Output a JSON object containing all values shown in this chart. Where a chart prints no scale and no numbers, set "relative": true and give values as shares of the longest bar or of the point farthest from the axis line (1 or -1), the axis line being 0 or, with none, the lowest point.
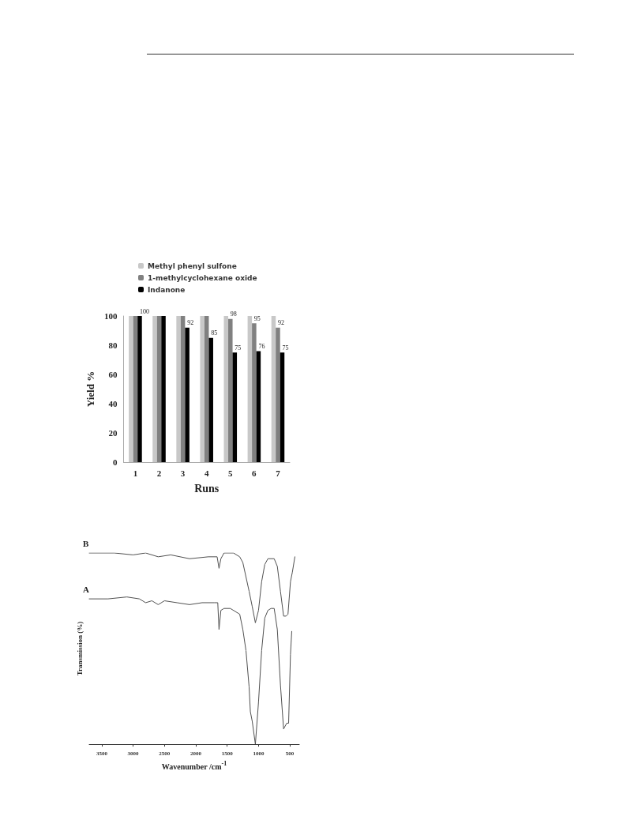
{
  "chart_data": [
    {
      "type": "bar",
      "xlabel": "Runs",
      "ylabel": "Yield %",
      "categories": [
        "1",
        "2",
        "3",
        "4",
        "5",
        "6",
        "7"
      ],
      "ylim": [
        0,
        100
      ],
      "yticks": [
        0,
        20,
        40,
        60,
        80,
        100
      ],
      "grid": false,
      "legend": "top",
      "series": [
        {
          "name": "Methyl phenyl sulfone",
          "color": "#c8c8c8",
          "values": [
            100,
            100,
            100,
            100,
            100,
            100,
            100
          ]
        },
        {
          "name": "1-methylcyclohexane oxide",
          "color": "#808080",
          "values": [
            100,
            100,
            100,
            100,
            98,
            95,
            92
          ],
          "value_labels": [
            null,
            null,
            null,
            null,
            "98",
            "95",
            "92"
          ]
        },
        {
          "name": "Indanone",
          "color": "#000000",
          "values": [
            100,
            100,
            92,
            85,
            75,
            76,
            75
          ],
          "value_labels": [
            "100",
            null,
            "92",
            "85",
            "75",
            "76",
            "75"
          ]
        }
      ]
    },
    {
      "type": "line",
      "xlabel": "Wavenumber /cm$^{-1}$",
      "ylabel": "Transmission (%)",
      "relative": true,
      "xlim": [
        3700,
        350
      ],
      "xticks": [
        3500,
        3000,
        2500,
        2000,
        1500,
        1000,
        500
      ],
      "grid": false,
      "legend": false,
      "marker": "none",
      "line_style": "solid",
      "series": [
        {
          "name": "B",
          "color": "#505050",
          "x": [
            3700,
            3300,
            3000,
            2800,
            2600,
            2400,
            2100,
            1800,
            1660,
            1630,
            1600,
            1550,
            1400,
            1300,
            1250,
            1150,
            1100,
            1050,
            1000,
            950,
            900,
            850,
            750,
            700,
            650,
            600,
            560,
            530,
            490,
            460,
            420
          ],
          "values": [
            1.0,
            1.0,
            0.99,
            1.0,
            0.98,
            0.99,
            0.97,
            0.98,
            0.98,
            0.92,
            0.97,
            1.0,
            1.0,
            0.98,
            0.95,
            0.8,
            0.72,
            0.635,
            0.7,
            0.85,
            0.94,
            0.97,
            0.97,
            0.93,
            0.8,
            0.67,
            0.67,
            0.68,
            0.85,
            0.9,
            0.98
          ]
        },
        {
          "name": "A",
          "color": "#505050",
          "x": [
            3700,
            3400,
            3100,
            2900,
            2800,
            2700,
            2600,
            2500,
            2300,
            2100,
            1900,
            1700,
            1650,
            1630,
            1600,
            1550,
            1450,
            1300,
            1250,
            1200,
            1150,
            1130,
            1100,
            1050,
            1000,
            950,
            900,
            850,
            800,
            750,
            700,
            650,
            600,
            550,
            520,
            490,
            470
          ],
          "values": [
            0.76,
            0.76,
            0.77,
            0.76,
            0.74,
            0.75,
            0.73,
            0.75,
            0.74,
            0.73,
            0.74,
            0.74,
            0.74,
            0.6,
            0.7,
            0.71,
            0.71,
            0.68,
            0.6,
            0.49,
            0.3,
            0.17,
            0.12,
            0.0,
            0.22,
            0.49,
            0.66,
            0.7,
            0.71,
            0.71,
            0.6,
            0.31,
            0.08,
            0.11,
            0.11,
            0.47,
            0.59
          ]
        }
      ]
    }
  ]
}
